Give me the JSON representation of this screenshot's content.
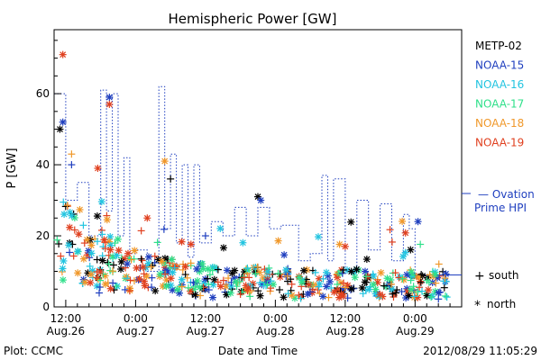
{
  "chart_data": {
    "type": "scatter",
    "title": "Hemispheric Power [GW]",
    "xlabel": "Date and Time",
    "ylabel": "P [GW]",
    "ylim": [
      0,
      78
    ],
    "xlim_hours": [
      -2,
      68
    ],
    "yticks": [
      0,
      20,
      40,
      60
    ],
    "xticks": [
      {
        "h": 0,
        "time": "12:00",
        "date": "Aug.26"
      },
      {
        "h": 12,
        "time": "0:00",
        "date": "Aug.27"
      },
      {
        "h": 24,
        "time": "12:00",
        "date": "Aug.27"
      },
      {
        "h": 36,
        "time": "0:00",
        "date": "Aug.28"
      },
      {
        "h": 48,
        "time": "12:00",
        "date": "Aug.28"
      },
      {
        "h": 60,
        "time": "0:00",
        "date": "Aug.29"
      }
    ],
    "grid": false,
    "legend_position": "right",
    "series": [
      {
        "name": "METP-02",
        "color": "#000000"
      },
      {
        "name": "NOAA-15",
        "color": "#1f3fbf"
      },
      {
        "name": "NOAA-16",
        "color": "#22c4e0"
      },
      {
        "name": "NOAA-17",
        "color": "#2fe08a"
      },
      {
        "name": "NOAA-18",
        "color": "#f0982a"
      },
      {
        "name": "NOAA-19",
        "color": "#e0401f"
      }
    ],
    "ovation": {
      "label_line1": "— Ovation",
      "label_line2": "Prime HPI",
      "color": "#1f3fbf",
      "points": [
        [
          -2,
          60
        ],
        [
          0,
          60
        ],
        [
          0,
          30
        ],
        [
          2,
          30
        ],
        [
          2,
          35
        ],
        [
          4,
          35
        ],
        [
          4,
          20
        ],
        [
          6,
          20
        ],
        [
          6,
          61
        ],
        [
          7,
          61
        ],
        [
          7,
          27
        ],
        [
          8,
          27
        ],
        [
          8,
          60
        ],
        [
          9,
          60
        ],
        [
          9,
          20
        ],
        [
          10,
          20
        ],
        [
          10,
          42
        ],
        [
          11,
          42
        ],
        [
          11,
          15
        ],
        [
          12,
          15
        ],
        [
          12,
          16
        ],
        [
          14,
          16
        ],
        [
          14,
          10
        ],
        [
          16,
          10
        ],
        [
          16,
          62
        ],
        [
          17,
          62
        ],
        [
          17,
          22
        ],
        [
          18,
          22
        ],
        [
          18,
          43
        ],
        [
          19,
          43
        ],
        [
          19,
          18
        ],
        [
          20,
          18
        ],
        [
          20,
          40
        ],
        [
          21,
          40
        ],
        [
          21,
          14
        ],
        [
          22,
          14
        ],
        [
          22,
          40
        ],
        [
          23,
          40
        ],
        [
          23,
          18
        ],
        [
          25,
          18
        ],
        [
          25,
          24
        ],
        [
          27,
          24
        ],
        [
          27,
          20
        ],
        [
          29,
          20
        ],
        [
          29,
          28
        ],
        [
          31,
          28
        ],
        [
          31,
          20
        ],
        [
          33,
          20
        ],
        [
          33,
          28
        ],
        [
          35,
          28
        ],
        [
          35,
          22
        ],
        [
          37,
          22
        ],
        [
          37,
          23
        ],
        [
          40,
          23
        ],
        [
          40,
          13
        ],
        [
          42,
          13
        ],
        [
          42,
          15
        ],
        [
          44,
          15
        ],
        [
          44,
          37
        ],
        [
          45,
          37
        ],
        [
          45,
          13
        ],
        [
          46,
          13
        ],
        [
          46,
          36
        ],
        [
          48,
          36
        ],
        [
          48,
          10
        ],
        [
          50,
          10
        ],
        [
          50,
          30
        ],
        [
          52,
          30
        ],
        [
          52,
          16
        ],
        [
          54,
          16
        ],
        [
          54,
          29
        ],
        [
          56,
          29
        ],
        [
          56,
          13
        ],
        [
          58,
          13
        ],
        [
          58,
          26
        ],
        [
          59,
          26
        ],
        [
          59,
          22
        ],
        [
          60,
          22
        ],
        [
          60,
          9
        ],
        [
          67,
          9
        ],
        [
          67,
          9
        ]
      ]
    },
    "key": {
      "south_symbol": "+",
      "south_label": "south",
      "north_symbol": "*",
      "north_label": "north"
    }
  },
  "footer": {
    "plot_credit": "Plot: CCMC",
    "timestamp": "2012/08/29 11:05:29"
  }
}
